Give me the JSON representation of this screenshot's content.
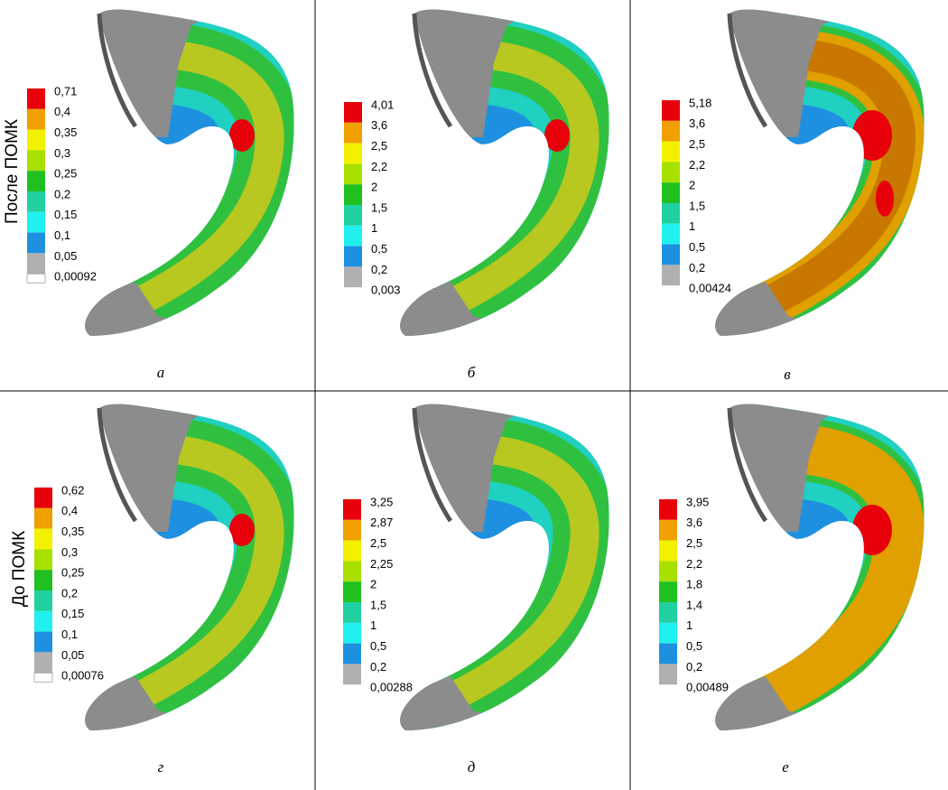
{
  "row_labels": [
    "После ПОМК",
    "До ПОМК"
  ],
  "panels": [
    {
      "letter": "а",
      "legend": [
        "0,71",
        "0,4",
        "0,35",
        "0,3",
        "0,25",
        "0,2",
        "0,15",
        "0,1",
        "0,05",
        "0,00092"
      ]
    },
    {
      "letter": "б",
      "legend": [
        "4,01",
        "3,6",
        "2,5",
        "2,2",
        "2",
        "1,5",
        "1",
        "0,5",
        "0,2",
        "0,003"
      ]
    },
    {
      "letter": "в",
      "legend": [
        "5,18",
        "3,6",
        "2,5",
        "2,2",
        "2",
        "1,5",
        "1",
        "0,5",
        "0,2",
        "0,00424"
      ]
    },
    {
      "letter": "г",
      "legend": [
        "0,62",
        "0,4",
        "0,35",
        "0,3",
        "0,25",
        "0,2",
        "0,15",
        "0,1",
        "0,05",
        "0,00076"
      ]
    },
    {
      "letter": "д",
      "legend": [
        "3,25",
        "2,87",
        "2,5",
        "2,25",
        "2",
        "1,5",
        "1",
        "0,5",
        "0,2",
        "0,00288"
      ]
    },
    {
      "letter": "е",
      "legend": [
        "3,95",
        "3,6",
        "2,5",
        "2,2",
        "1,8",
        "1,4",
        "1",
        "0,5",
        "0,2",
        "0,00489"
      ]
    }
  ]
}
